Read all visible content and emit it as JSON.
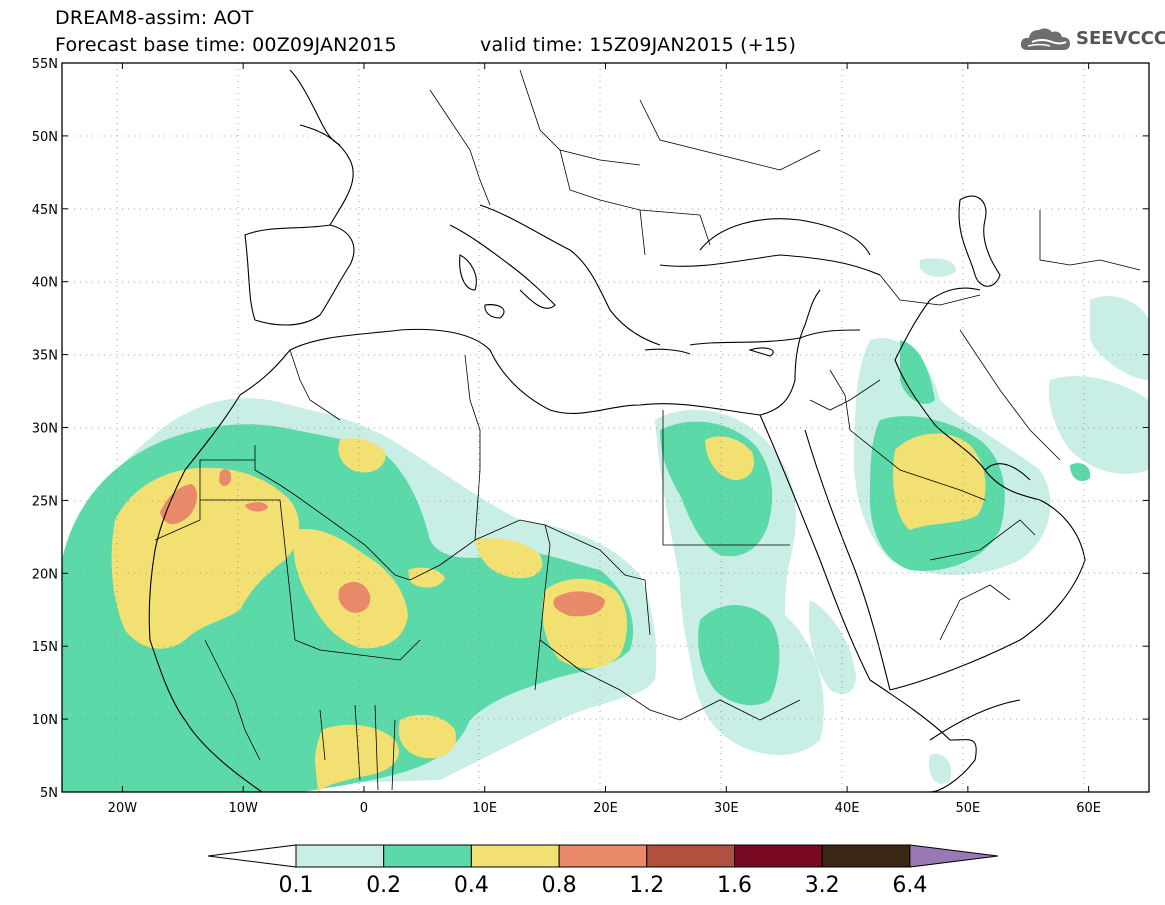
{
  "header": {
    "title": "DREAM8-assim: AOT",
    "base_time": "Forecast base time: 00Z09JAN2015",
    "valid_time": "valid time: 15Z09JAN2015 (+15)"
  },
  "logo": {
    "text": "SEEVCCC",
    "icon": "cloud-icon"
  },
  "map": {
    "lon_range": [
      -25,
      65
    ],
    "lat_range": [
      5,
      55
    ],
    "lat_ticks": [
      {
        "value": 55,
        "label": "55N"
      },
      {
        "value": 50,
        "label": "50N"
      },
      {
        "value": 45,
        "label": "45N"
      },
      {
        "value": 40,
        "label": "40N"
      },
      {
        "value": 35,
        "label": "35N"
      },
      {
        "value": 30,
        "label": "30N"
      },
      {
        "value": 25,
        "label": "25N"
      },
      {
        "value": 20,
        "label": "20N"
      },
      {
        "value": 15,
        "label": "15N"
      },
      {
        "value": 10,
        "label": "10N"
      },
      {
        "value": 5,
        "label": "5N"
      }
    ],
    "lon_ticks": [
      {
        "value": -20,
        "label": "20W"
      },
      {
        "value": -10,
        "label": "10W"
      },
      {
        "value": 0,
        "label": "0"
      },
      {
        "value": 10,
        "label": "10E"
      },
      {
        "value": 20,
        "label": "20E"
      },
      {
        "value": 30,
        "label": "30E"
      },
      {
        "value": 40,
        "label": "40E"
      },
      {
        "value": 50,
        "label": "50E"
      },
      {
        "value": 60,
        "label": "60E"
      }
    ],
    "grid": "dotted"
  },
  "legend": {
    "levels": [
      "0.1",
      "0.2",
      "0.4",
      "0.8",
      "1.2",
      "1.6",
      "3.2",
      "6.4"
    ],
    "colors": [
      "#ffffff",
      "#c8eee6",
      "#5cd9a8",
      "#f2e172",
      "#e8896a",
      "#b0503e",
      "#7a0a24",
      "#3a2614",
      "#9a78b4"
    ]
  }
}
